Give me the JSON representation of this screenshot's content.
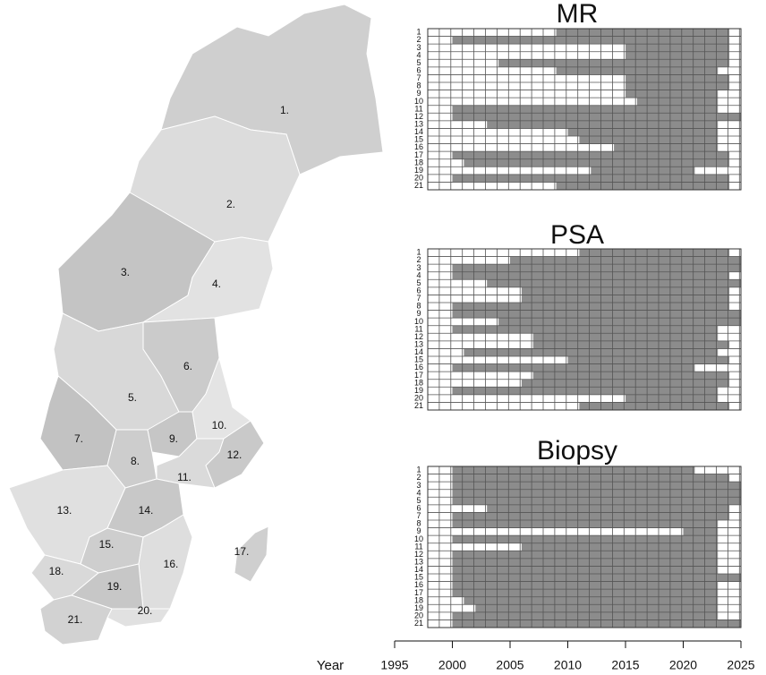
{
  "map": {
    "regions": [
      "1.",
      "2.",
      "3.",
      "4.",
      "5.",
      "6.",
      "7.",
      "8.",
      "9.",
      "10.",
      "11.",
      "12.",
      "13.",
      "14.",
      "15.",
      "16.",
      "17.",
      "18.",
      "19.",
      "20.",
      "21."
    ]
  },
  "chart_data": [
    {
      "type": "timeline",
      "title": "MR",
      "xlim": [
        1995,
        2025
      ],
      "categories": [
        "1",
        "2",
        "3",
        "4",
        "5",
        "6",
        "7",
        "8",
        "9",
        "10",
        "11",
        "12",
        "13",
        "14",
        "15",
        "16",
        "17",
        "18",
        "19",
        "20",
        "21"
      ],
      "start": [
        2009,
        2000,
        2015,
        2015,
        2004,
        2009,
        2015,
        2015,
        2015,
        2016,
        2000,
        2000,
        2003,
        2010,
        2011,
        2014,
        2000,
        2001,
        2012,
        2000,
        2009
      ],
      "end": [
        2024,
        2024,
        2024,
        2024,
        2024,
        2023,
        2024,
        2024,
        2023,
        2023,
        2023,
        2025,
        2023,
        2023,
        2023,
        2023,
        2024,
        2024,
        2021,
        2024,
        2024
      ]
    },
    {
      "type": "timeline",
      "title": "PSA",
      "xlim": [
        1995,
        2025
      ],
      "categories": [
        "1",
        "2",
        "3",
        "4",
        "5",
        "6",
        "7",
        "8",
        "9",
        "10",
        "11",
        "12",
        "13",
        "14",
        "15",
        "16",
        "17",
        "18",
        "19",
        "20",
        "21"
      ],
      "start": [
        2011,
        2005,
        2000,
        2000,
        2003,
        2006,
        2006,
        2000,
        2000,
        2004,
        2000,
        2007,
        2007,
        2001,
        2010,
        2000,
        2007,
        2006,
        2000,
        2015,
        2011
      ],
      "end": [
        2024,
        2025,
        2025,
        2024,
        2025,
        2024,
        2024,
        2024,
        2025,
        2025,
        2023,
        2023,
        2024,
        2023,
        2024,
        2021,
        2024,
        2024,
        2023,
        2023,
        2024
      ]
    },
    {
      "type": "timeline",
      "title": "Biopsy",
      "xlabel": "Year",
      "xlim": [
        1995,
        2025
      ],
      "xticks": [
        1995,
        2000,
        2005,
        2010,
        2015,
        2020,
        2025
      ],
      "categories": [
        "1",
        "2",
        "3",
        "4",
        "5",
        "6",
        "7",
        "8",
        "9",
        "10",
        "11",
        "12",
        "13",
        "14",
        "15",
        "16",
        "17",
        "18",
        "19",
        "20",
        "21"
      ],
      "start": [
        2000,
        2000,
        2000,
        2000,
        2000,
        2003,
        2000,
        2000,
        2020,
        2000,
        2006,
        2000,
        2000,
        2000,
        2000,
        2000,
        2000,
        2001,
        2002,
        2000,
        2000
      ],
      "end": [
        2021,
        2024,
        2025,
        2025,
        2025,
        2024,
        2024,
        2023,
        2023,
        2023,
        2023,
        2023,
        2023,
        2023,
        2025,
        2023,
        2023,
        2023,
        2023,
        2023,
        2025
      ]
    }
  ]
}
